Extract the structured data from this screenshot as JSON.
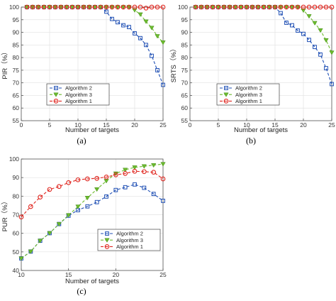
{
  "chart_data": [
    {
      "type": "line",
      "panel_label": "(a)",
      "xlabel": "Number of targets",
      "ylabel": "PIR（%）",
      "xlim": [
        0,
        25
      ],
      "ylim": [
        55,
        100
      ],
      "xticks": [
        0,
        5,
        10,
        15,
        20,
        25
      ],
      "yticks": [
        55,
        60,
        65,
        70,
        75,
        80,
        85,
        90,
        95,
        100
      ],
      "grid": true,
      "legend_position": "lower-left",
      "series": [
        {
          "name": "Algorithm 2",
          "color": "#1f4fb4",
          "marker": "square",
          "x": [
            1,
            2,
            3,
            4,
            5,
            6,
            7,
            8,
            9,
            10,
            11,
            12,
            13,
            14,
            15,
            16,
            17,
            18,
            19,
            20,
            21,
            22,
            23,
            24,
            25
          ],
          "y": [
            100,
            100,
            100,
            100,
            100,
            100,
            100,
            100,
            100,
            100,
            100,
            100,
            100,
            100,
            98.2,
            95.3,
            94.0,
            92.8,
            92.1,
            89.6,
            87.7,
            85.0,
            80.7,
            75.0,
            69.2
          ]
        },
        {
          "name": "Algorithm 3",
          "color": "#6dbb2e",
          "marker": "triangle-down",
          "x": [
            1,
            2,
            3,
            4,
            5,
            6,
            7,
            8,
            9,
            10,
            11,
            12,
            13,
            14,
            15,
            16,
            17,
            18,
            19,
            20,
            21,
            22,
            23,
            24,
            25
          ],
          "y": [
            100,
            100,
            100,
            100,
            100,
            100,
            100,
            100,
            100,
            100,
            100,
            100,
            100,
            100,
            100,
            100,
            100,
            100,
            100,
            98.8,
            97.1,
            94.3,
            91.8,
            88.5,
            86.0
          ]
        },
        {
          "name": "Algorithm 1",
          "color": "#e0261f",
          "marker": "circle",
          "x": [
            1,
            2,
            3,
            4,
            5,
            6,
            7,
            8,
            9,
            10,
            11,
            12,
            13,
            14,
            15,
            16,
            17,
            18,
            19,
            20,
            21,
            22,
            23,
            24,
            25
          ],
          "y": [
            100,
            100,
            100,
            100,
            100,
            100,
            100,
            100,
            100,
            100,
            100,
            100,
            100,
            100,
            100,
            100,
            100,
            100,
            100,
            100,
            100,
            99.6,
            100,
            100,
            100
          ]
        }
      ]
    },
    {
      "type": "line",
      "panel_label": "(b)",
      "xlabel": "Number of targets",
      "ylabel": "SRTS（%）",
      "xlim": [
        0,
        25
      ],
      "ylim": [
        55,
        100
      ],
      "xticks": [
        0,
        5,
        10,
        15,
        20,
        25
      ],
      "yticks": [
        55,
        60,
        65,
        70,
        75,
        80,
        85,
        90,
        95,
        100
      ],
      "grid": true,
      "legend_position": "lower-left",
      "series": [
        {
          "name": "Algorithm 2",
          "color": "#1f4fb4",
          "marker": "square",
          "x": [
            1,
            2,
            3,
            4,
            5,
            6,
            7,
            8,
            9,
            10,
            11,
            12,
            13,
            14,
            15,
            16,
            17,
            18,
            19,
            20,
            21,
            22,
            23,
            24,
            25
          ],
          "y": [
            100,
            100,
            100,
            100,
            100,
            100,
            100,
            100,
            100,
            100,
            100,
            100,
            100,
            100,
            100,
            97.6,
            93.8,
            92.8,
            90.7,
            89.4,
            87.0,
            84.2,
            81.2,
            75.8,
            69.5
          ]
        },
        {
          "name": "Algorithm 3",
          "color": "#6dbb2e",
          "marker": "triangle-down",
          "x": [
            1,
            2,
            3,
            4,
            5,
            6,
            7,
            8,
            9,
            10,
            11,
            12,
            13,
            14,
            15,
            16,
            17,
            18,
            19,
            20,
            21,
            22,
            23,
            24,
            25
          ],
          "y": [
            100,
            100,
            100,
            100,
            100,
            100,
            100,
            100,
            100,
            100,
            100,
            100,
            100,
            100,
            100,
            100,
            100,
            100,
            100,
            98.7,
            96.4,
            93.7,
            90.8,
            86.9,
            82.0
          ]
        },
        {
          "name": "Algorithm 1",
          "color": "#e0261f",
          "marker": "circle",
          "x": [
            1,
            2,
            3,
            4,
            5,
            6,
            7,
            8,
            9,
            10,
            11,
            12,
            13,
            14,
            15,
            16,
            17,
            18,
            19,
            20,
            21,
            22,
            23,
            24,
            25
          ],
          "y": [
            100,
            100,
            100,
            100,
            100,
            100,
            100,
            100,
            100,
            100,
            100,
            100,
            100,
            100,
            100,
            100,
            100,
            100,
            100,
            100,
            100,
            100,
            100,
            100,
            100
          ]
        }
      ]
    },
    {
      "type": "line",
      "panel_label": "(c)",
      "xlabel": "Number of targets",
      "ylabel": "PUR（%）",
      "xlim": [
        10,
        25
      ],
      "ylim": [
        40,
        100
      ],
      "xticks": [
        10,
        15,
        20,
        25
      ],
      "yticks": [
        40,
        50,
        60,
        70,
        80,
        90,
        100
      ],
      "grid": true,
      "legend_position": "lower-right",
      "series": [
        {
          "name": "Algorithm 2",
          "color": "#1f4fb4",
          "marker": "square",
          "x": [
            10,
            11,
            12,
            13,
            14,
            15,
            16,
            17,
            18,
            19,
            20,
            21,
            22,
            23,
            24,
            25
          ],
          "y": [
            46.5,
            50.2,
            56.0,
            60.1,
            65.0,
            69.5,
            72.5,
            74.5,
            76.8,
            79.8,
            83.3,
            84.8,
            86.3,
            84.5,
            81.2,
            77.5
          ]
        },
        {
          "name": "Algorithm 3",
          "color": "#6dbb2e",
          "marker": "triangle-down",
          "x": [
            10,
            11,
            12,
            13,
            14,
            15,
            16,
            17,
            18,
            19,
            20,
            21,
            22,
            23,
            24,
            25
          ],
          "y": [
            46.5,
            50.2,
            56.0,
            60.1,
            65.0,
            69.8,
            74.4,
            79.1,
            83.7,
            88.2,
            92.2,
            94.2,
            95.5,
            96.1,
            96.7,
            97.3
          ]
        },
        {
          "name": "Algorithm 1",
          "color": "#e0261f",
          "marker": "circle",
          "x": [
            10,
            11,
            12,
            13,
            14,
            15,
            16,
            17,
            18,
            19,
            20,
            21,
            22,
            23,
            24,
            25
          ],
          "y": [
            68.8,
            74.4,
            79.5,
            83.6,
            85.2,
            87.3,
            88.8,
            89.3,
            89.6,
            90.3,
            91.5,
            92.2,
            93.4,
            93.2,
            92.9,
            89.3
          ]
        }
      ]
    }
  ]
}
